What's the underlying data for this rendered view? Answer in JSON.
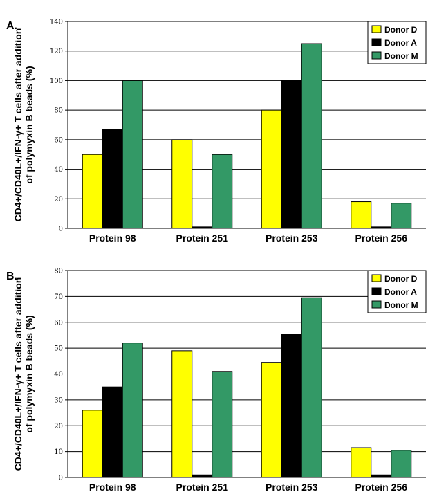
{
  "chart_data": [
    {
      "type": "bar",
      "panel_label": "A.",
      "ylabel_line1": "CD4+/CD40L+/IFN-γ+ T cells after addition",
      "ylabel_line2": "of polymyxin B beads (%)",
      "categories": [
        "Protein 98",
        "Protein 251",
        "Protein 253",
        "Protein 256"
      ],
      "ylim": [
        0,
        140
      ],
      "yticks": [
        "0",
        "20",
        "40",
        "60",
        "80",
        "100",
        "120",
        "140"
      ],
      "grid": true,
      "legend_position": "top-right",
      "series": [
        {
          "name": "Donor D",
          "color": "#ffff00",
          "values": [
            50,
            60,
            80,
            18
          ]
        },
        {
          "name": "Donor A",
          "color": "#000000",
          "values": [
            67,
            1,
            100,
            1
          ]
        },
        {
          "name": "Donor M",
          "color": "#339966",
          "values": [
            100,
            50,
            125,
            17
          ]
        }
      ]
    },
    {
      "type": "bar",
      "panel_label": "B.",
      "ylabel_line1": "CD4+/CD40L+/IFN-γ+ T cells after addition",
      "ylabel_line2": "of polymyxin B beads (%)",
      "categories": [
        "Protein 98",
        "Protein 251",
        "Protein 253",
        "Protein 256"
      ],
      "ylim": [
        0,
        80
      ],
      "yticks": [
        "0",
        "10",
        "20",
        "30",
        "40",
        "50",
        "60",
        "70",
        "80"
      ],
      "grid": true,
      "legend_position": "top-right",
      "series": [
        {
          "name": "Donor D",
          "color": "#ffff00",
          "values": [
            26,
            49,
            44.5,
            11.5
          ]
        },
        {
          "name": "Donor A",
          "color": "#000000",
          "values": [
            35,
            1,
            55.5,
            1
          ]
        },
        {
          "name": "Donor M",
          "color": "#339966",
          "values": [
            52,
            41,
            69.5,
            10.5
          ]
        }
      ]
    }
  ]
}
